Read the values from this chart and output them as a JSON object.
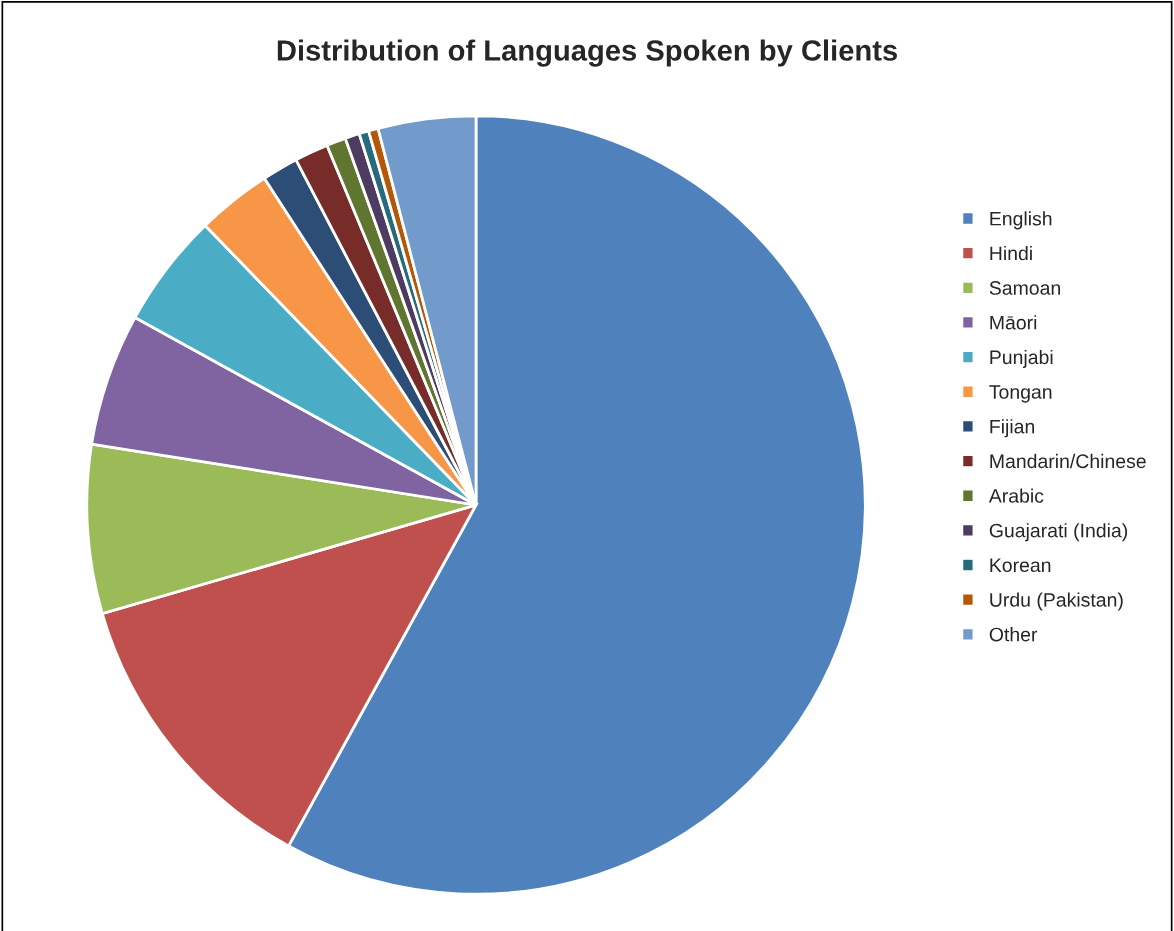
{
  "chart_data": {
    "type": "pie",
    "title": "Distribution of Languages Spoken by Clients",
    "categories": [
      "English",
      "Hindi",
      "Samoan",
      "Māori",
      "Punjabi",
      "Tongan",
      "Fijian",
      "Mandarin/Chinese",
      "Arabic",
      "Guajarati (India)",
      "Korean",
      "Urdu (Pakistan)",
      "Other"
    ],
    "values": [
      58.0,
      12.5,
      7.0,
      5.5,
      4.75,
      3.1,
      1.5,
      1.4,
      0.8,
      0.6,
      0.4,
      0.4,
      4.05
    ],
    "colors": [
      "#4f81bd",
      "#c0504d",
      "#9bbb59",
      "#8064a2",
      "#4bacc6",
      "#f79646",
      "#2c4d75",
      "#772c2a",
      "#5f7530",
      "#4d3b62",
      "#276a7c",
      "#b65708",
      "#729aca"
    ],
    "legend": "right"
  }
}
